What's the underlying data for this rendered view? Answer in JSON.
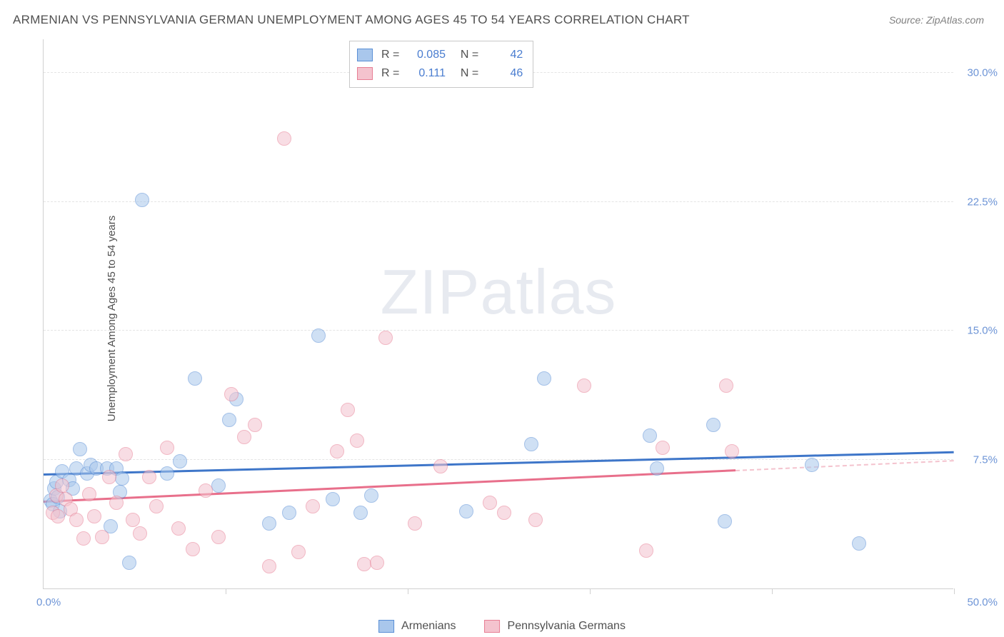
{
  "title": "ARMENIAN VS PENNSYLVANIA GERMAN UNEMPLOYMENT AMONG AGES 45 TO 54 YEARS CORRELATION CHART",
  "source": "Source: ZipAtlas.com",
  "watermark": "ZIPatlas",
  "y_axis_label": "Unemployment Among Ages 45 to 54 years",
  "chart": {
    "type": "scatter",
    "xlim": [
      0,
      50
    ],
    "ylim": [
      0,
      32
    ],
    "x_origin_label": "0.0%",
    "x_max_label": "50.0%",
    "x_ticks": [
      10,
      20,
      30,
      40,
      50
    ],
    "y_ticks": [
      {
        "v": 7.5,
        "label": "7.5%"
      },
      {
        "v": 15.0,
        "label": "15.0%"
      },
      {
        "v": 22.5,
        "label": "22.5%"
      },
      {
        "v": 30.0,
        "label": "30.0%"
      }
    ],
    "background_color": "#ffffff",
    "grid_color": "#e4e4e4",
    "point_radius": 10,
    "point_opacity": 0.55,
    "series": [
      {
        "name": "Armenians",
        "fill": "#a9c7ec",
        "stroke": "#5a8fd6",
        "r_value": "0.085",
        "n_value": "42",
        "trend": {
          "x1": 0,
          "y1": 6.6,
          "x2": 50,
          "y2": 7.9,
          "solid_until": 50,
          "color": "#3e76c9"
        },
        "points": [
          [
            0.4,
            5.1
          ],
          [
            0.5,
            4.9
          ],
          [
            0.6,
            5.8
          ],
          [
            0.7,
            6.2
          ],
          [
            0.8,
            5.3
          ],
          [
            0.9,
            4.5
          ],
          [
            1.0,
            6.8
          ],
          [
            1.4,
            6.3
          ],
          [
            1.6,
            5.8
          ],
          [
            1.8,
            7.0
          ],
          [
            2.0,
            8.1
          ],
          [
            2.4,
            6.7
          ],
          [
            2.6,
            7.2
          ],
          [
            2.9,
            7.0
          ],
          [
            3.5,
            7.0
          ],
          [
            3.7,
            3.6
          ],
          [
            4.0,
            7.0
          ],
          [
            4.2,
            5.6
          ],
          [
            4.3,
            6.4
          ],
          [
            4.7,
            1.5
          ],
          [
            5.4,
            22.6
          ],
          [
            6.8,
            6.7
          ],
          [
            7.5,
            7.4
          ],
          [
            8.3,
            12.2
          ],
          [
            9.6,
            6.0
          ],
          [
            10.2,
            9.8
          ],
          [
            10.6,
            11.0
          ],
          [
            12.4,
            3.8
          ],
          [
            13.5,
            4.4
          ],
          [
            15.1,
            14.7
          ],
          [
            15.9,
            5.2
          ],
          [
            17.4,
            4.4
          ],
          [
            18.0,
            5.4
          ],
          [
            23.2,
            4.5
          ],
          [
            26.8,
            8.4
          ],
          [
            27.5,
            12.2
          ],
          [
            33.3,
            8.9
          ],
          [
            33.7,
            7.0
          ],
          [
            36.8,
            9.5
          ],
          [
            37.4,
            3.9
          ],
          [
            42.2,
            7.2
          ],
          [
            44.8,
            2.6
          ]
        ]
      },
      {
        "name": "Pennsylvania Germans",
        "fill": "#f4c3ce",
        "stroke": "#e77e94",
        "r_value": "0.111",
        "n_value": "46",
        "trend": {
          "x1": 0,
          "y1": 5.0,
          "x2": 50,
          "y2": 7.4,
          "solid_until": 38,
          "color": "#e86f8b"
        },
        "points": [
          [
            0.5,
            4.4
          ],
          [
            0.7,
            5.4
          ],
          [
            0.8,
            4.2
          ],
          [
            1.0,
            6.0
          ],
          [
            1.2,
            5.2
          ],
          [
            1.5,
            4.6
          ],
          [
            1.8,
            4.0
          ],
          [
            2.2,
            2.9
          ],
          [
            2.5,
            5.5
          ],
          [
            2.8,
            4.2
          ],
          [
            3.2,
            3.0
          ],
          [
            3.6,
            6.5
          ],
          [
            4.0,
            5.0
          ],
          [
            4.5,
            7.8
          ],
          [
            4.9,
            4.0
          ],
          [
            5.3,
            3.2
          ],
          [
            5.8,
            6.5
          ],
          [
            6.2,
            4.8
          ],
          [
            6.8,
            8.2
          ],
          [
            7.4,
            3.5
          ],
          [
            8.2,
            2.3
          ],
          [
            8.9,
            5.7
          ],
          [
            9.6,
            3.0
          ],
          [
            10.3,
            11.3
          ],
          [
            11.0,
            8.8
          ],
          [
            11.6,
            9.5
          ],
          [
            12.4,
            1.3
          ],
          [
            13.2,
            26.2
          ],
          [
            14.0,
            2.1
          ],
          [
            14.8,
            4.8
          ],
          [
            16.1,
            8.0
          ],
          [
            16.7,
            10.4
          ],
          [
            17.2,
            8.6
          ],
          [
            17.6,
            1.4
          ],
          [
            18.3,
            1.5
          ],
          [
            18.8,
            14.6
          ],
          [
            20.4,
            3.8
          ],
          [
            21.8,
            7.1
          ],
          [
            24.5,
            5.0
          ],
          [
            25.3,
            4.4
          ],
          [
            27.0,
            4.0
          ],
          [
            29.7,
            11.8
          ],
          [
            33.1,
            2.2
          ],
          [
            34.0,
            8.2
          ],
          [
            37.5,
            11.8
          ],
          [
            37.8,
            8.0
          ]
        ]
      }
    ]
  },
  "text_colors": {
    "title": "#505050",
    "axis": "#505050",
    "ticks": "#6d94d6",
    "stats_val": "#4a7dd0"
  }
}
